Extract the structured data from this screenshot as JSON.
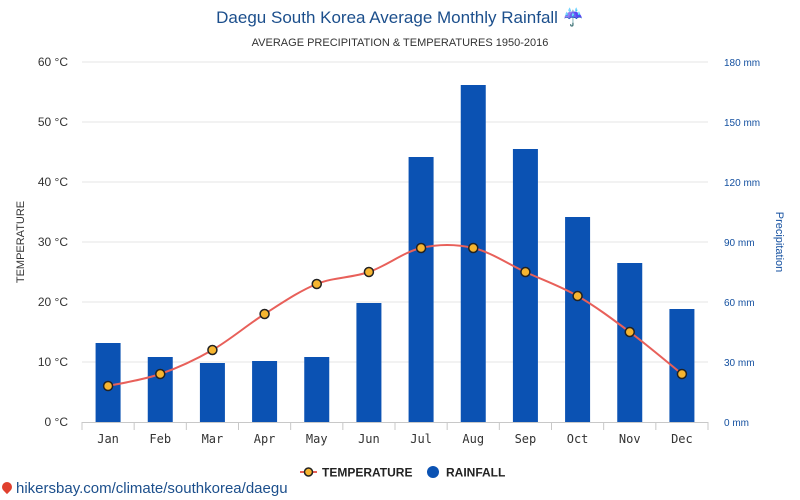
{
  "chart_data": {
    "type": "bar",
    "title": "Daegu South Korea Average Monthly Rainfall ☔",
    "subtitle": "AVERAGE PRECIPITATION & TEMPERATURES 1950-2016",
    "categories": [
      "Jan",
      "Feb",
      "Mar",
      "Apr",
      "May",
      "Jun",
      "Jul",
      "Aug",
      "Sep",
      "Oct",
      "Nov",
      "Dec"
    ],
    "series": [
      {
        "name": "RAINFALL",
        "type": "bar",
        "axis": "right",
        "color": "#0b52b3",
        "values": [
          39.5,
          32.5,
          29.5,
          30.5,
          32.5,
          59.5,
          132.5,
          168.5,
          136.5,
          102.5,
          79.5,
          56.5
        ]
      },
      {
        "name": "TEMPERATURE",
        "type": "line",
        "axis": "left",
        "color": "#e8605a",
        "marker_color": "#f6b530",
        "values": [
          6,
          8,
          12,
          18,
          23,
          25,
          29,
          29,
          25,
          21,
          15,
          8
        ]
      }
    ],
    "ylabel": "TEMPERATURE",
    "y2label": "Precipitation",
    "ylim": [
      0,
      60
    ],
    "y2lim": [
      0,
      180
    ],
    "yticks": [
      "0 °C",
      "10 °C",
      "20 °C",
      "30 °C",
      "40 °C",
      "50 °C",
      "60 °C"
    ],
    "y2ticks": [
      "0 mm",
      "30 mm",
      "60 mm",
      "90 mm",
      "120 mm",
      "150 mm",
      "180 mm"
    ],
    "grid": true,
    "legend_position": "bottom-center"
  },
  "footer": {
    "link_text": "hikersbay.com/climate/southkorea/daegu",
    "icon": "map-pin-icon"
  }
}
